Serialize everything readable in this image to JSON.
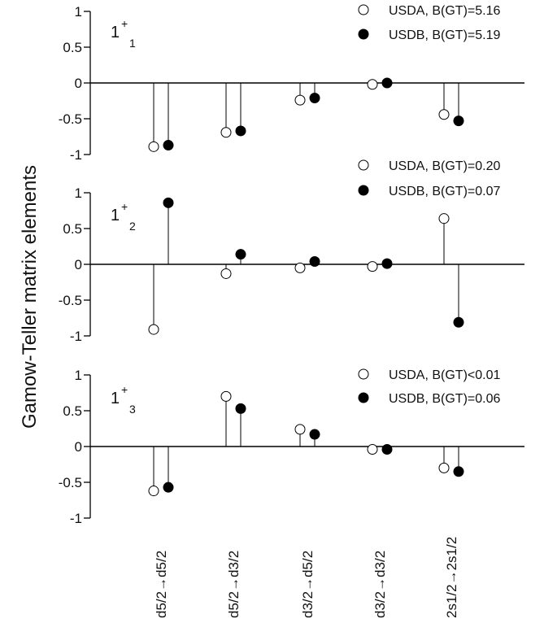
{
  "chart_data": {
    "type": "stem",
    "ylabel": "Gamow-Teller matrix elements",
    "categories": [
      "d5/2",
      "d5/2",
      "d3/2",
      "d3/2",
      "2s1/2"
    ],
    "category_targets": [
      "d5/2",
      "d3/2",
      "d5/2",
      "d3/2",
      "2s1/2"
    ],
    "arrow": "→",
    "ylim": [
      -1,
      1
    ],
    "yticks": [
      1,
      0.5,
      0,
      -0.5,
      -1
    ],
    "ytick_labels": [
      "1",
      "0.5",
      "0",
      "-0.5",
      "-1"
    ],
    "panels": [
      {
        "label": "1",
        "sup": "+",
        "sub": "1",
        "series": [
          {
            "name": "USDA, B(GT)=5.16",
            "marker": "open-circle",
            "values": [
              -0.89,
              -0.69,
              -0.24,
              -0.02,
              -0.44
            ]
          },
          {
            "name": "USDB, B(GT)=5.19",
            "marker": "filled-circle",
            "values": [
              -0.87,
              -0.67,
              -0.21,
              0.0,
              -0.53
            ]
          }
        ]
      },
      {
        "label": "1",
        "sup": "+",
        "sub": "2",
        "series": [
          {
            "name": "USDA, B(GT)=0.20",
            "marker": "open-circle",
            "values": [
              -0.91,
              -0.13,
              -0.05,
              -0.03,
              0.64
            ]
          },
          {
            "name": "USDB, B(GT)=0.07",
            "marker": "filled-circle",
            "values": [
              0.86,
              0.14,
              0.04,
              0.01,
              -0.81
            ]
          }
        ]
      },
      {
        "label": "1",
        "sup": "+",
        "sub": "3",
        "series": [
          {
            "name": "USDA, B(GT)<0.01",
            "marker": "open-circle",
            "values": [
              -0.62,
              0.7,
              0.24,
              -0.04,
              -0.3
            ]
          },
          {
            "name": "USDB, B(GT)=0.06",
            "marker": "filled-circle",
            "values": [
              -0.57,
              0.53,
              0.17,
              -0.04,
              -0.35
            ]
          }
        ]
      }
    ]
  }
}
